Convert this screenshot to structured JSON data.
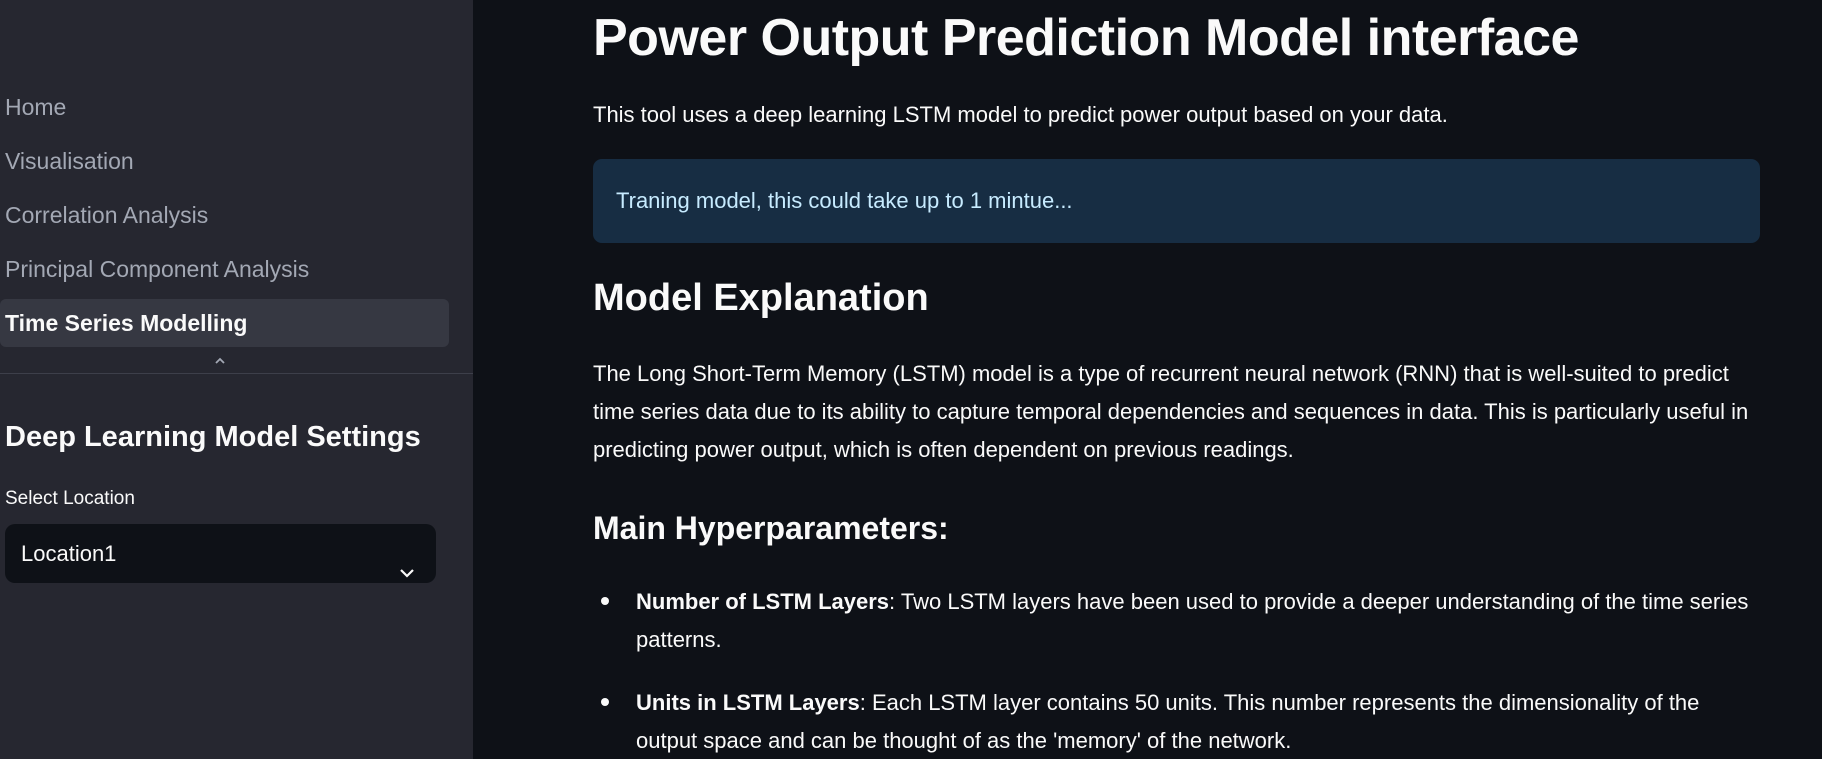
{
  "sidebar": {
    "nav": [
      {
        "label": "Home"
      },
      {
        "label": "Visualisation"
      },
      {
        "label": "Correlation Analysis"
      },
      {
        "label": "Principal Component Analysis"
      },
      {
        "label": "Time Series Modelling",
        "active": true
      }
    ],
    "collapse_icon": "chevron-up-icon",
    "settings_title": "Deep Learning Model Settings",
    "select_label": "Select Location",
    "select_value": "Location1",
    "select_icon": "chevron-down-icon"
  },
  "main": {
    "title": "Power Output Prediction Model interface",
    "intro": "This tool uses a deep learning LSTM model to predict power output based on your data.",
    "info_message": "Traning model, this could take up to 1 mintue...",
    "model_explanation_heading": "Model Explanation",
    "model_explanation_text": "The Long Short-Term Memory (LSTM) model is a type of recurrent neural network (RNN) that is well-suited to predict time series data due to its ability to capture temporal dependencies and sequences in data. This is particularly useful in predicting power output, which is often dependent on previous readings.",
    "hyperparams_heading": "Main Hyperparameters:",
    "hyperparams": [
      {
        "term": "Number of LSTM Layers",
        "desc": ": Two LSTM layers have been used to provide a deeper understanding of the time series patterns."
      },
      {
        "term": "Units in LSTM Layers",
        "desc": ": Each LSTM layer contains 50 units. This number represents the dimensionality of the output space and can be thought of as the 'memory' of the network."
      }
    ]
  },
  "colors": {
    "sidebar_bg": "#262730",
    "main_bg": "#0e1117",
    "info_bg": "#172d43",
    "info_text": "#c7ebff"
  }
}
